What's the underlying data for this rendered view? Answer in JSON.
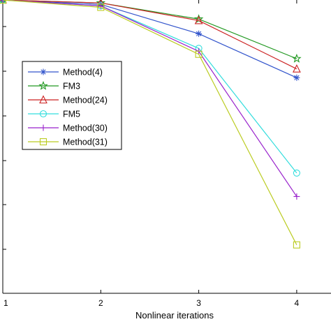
{
  "chart_data": {
    "type": "line",
    "xlabel": "Nonlinear iterations",
    "ylabel": "",
    "title": "",
    "x": [
      1,
      2,
      3,
      4
    ],
    "xticks": [
      "1",
      "2",
      "3",
      "4"
    ],
    "xlim": [
      1,
      4.35
    ],
    "ylim": [
      0,
      1.0
    ],
    "grid": false,
    "legend_position": "upper-left",
    "series": [
      {
        "name": "Method(4)",
        "marker": "asterisk",
        "color": "#3355cc",
        "values": [
          1.0,
          0.985,
          0.885,
          0.735
        ]
      },
      {
        "name": "FM3",
        "marker": "star",
        "color": "#229922",
        "values": [
          1.0,
          0.99,
          0.935,
          0.8
        ]
      },
      {
        "name": "Method(24)",
        "marker": "triangle",
        "color": "#cc2222",
        "values": [
          1.0,
          0.99,
          0.93,
          0.765
        ]
      },
      {
        "name": "FM5",
        "marker": "circle",
        "color": "#33dddd",
        "values": [
          1.0,
          0.98,
          0.835,
          0.41
        ]
      },
      {
        "name": "Method(30)",
        "marker": "plus",
        "color": "#9922cc",
        "values": [
          1.0,
          0.98,
          0.825,
          0.33
        ]
      },
      {
        "name": "Method(31)",
        "marker": "square",
        "color": "#bbcc22",
        "values": [
          1.0,
          0.975,
          0.815,
          0.165
        ]
      }
    ]
  }
}
